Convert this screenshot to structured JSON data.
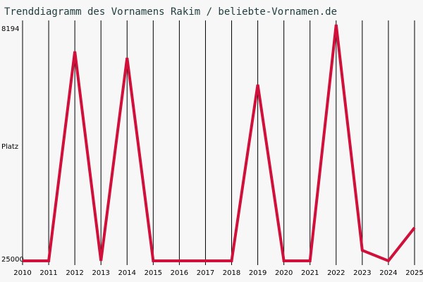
{
  "chart_data": {
    "type": "line",
    "title": "Trenddiagramm des Vornamens Rakim / beliebte-Vornamen.de",
    "y_label": "Platz",
    "x": [
      2010,
      2011,
      2012,
      2013,
      2014,
      2015,
      2016,
      2017,
      2018,
      2019,
      2020,
      2021,
      2022,
      2023,
      2024,
      2025
    ],
    "xlim": [
      2010,
      2025
    ],
    "xticks": [
      2010,
      2011,
      2012,
      2013,
      2014,
      2015,
      2016,
      2017,
      2018,
      2019,
      2020,
      2021,
      2022,
      2023,
      2024,
      2025
    ],
    "ylim": [
      25000,
      8194
    ],
    "yticks": [
      8194,
      25000
    ],
    "grid": true,
    "series": [
      {
        "color": "#d0103a",
        "values": [
          25000,
          25000,
          10100,
          25000,
          10550,
          25000,
          25000,
          25000,
          25000,
          12460,
          25000,
          25000,
          8194,
          24250,
          25000,
          22640
        ]
      }
    ]
  }
}
